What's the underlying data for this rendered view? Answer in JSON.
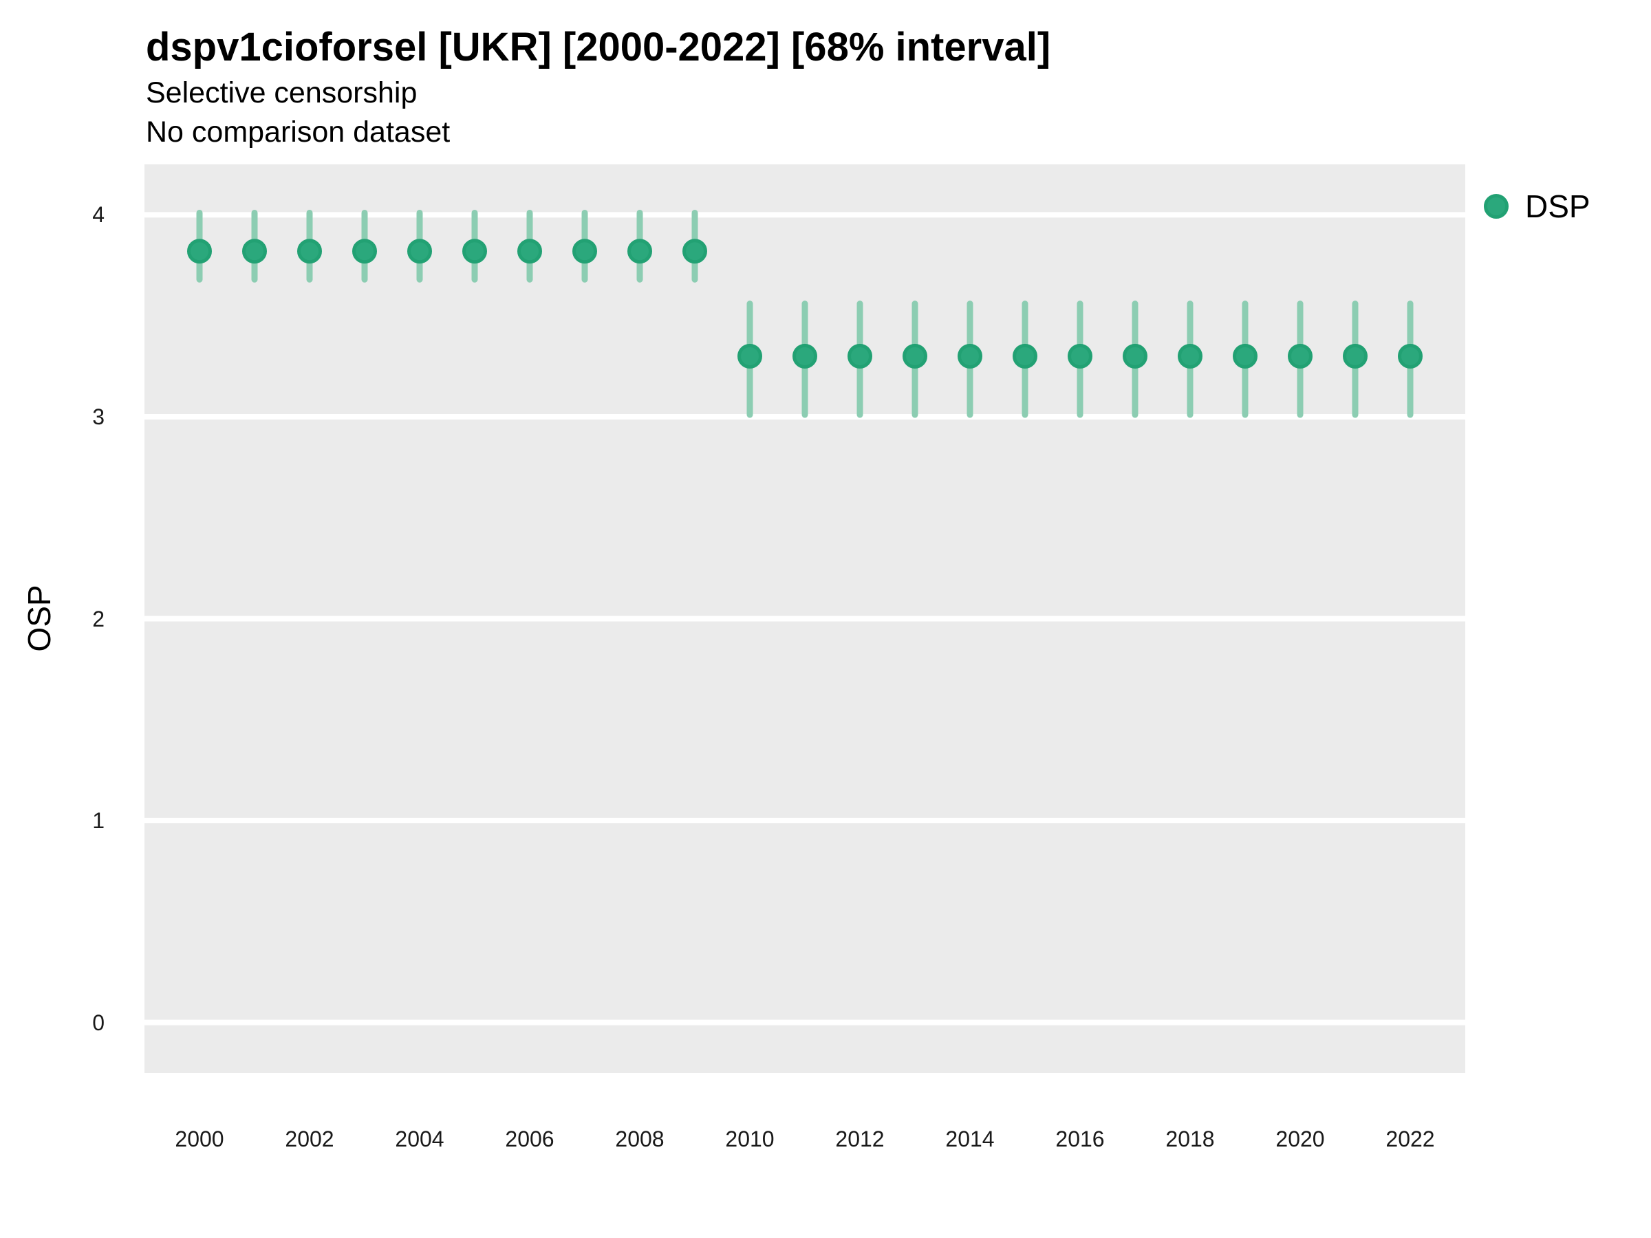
{
  "header": {
    "title": "dspv1cioforsel [UKR] [2000-2022] [68% interval]",
    "subtitle_line1": "Selective censorship",
    "subtitle_line2": "No comparison dataset"
  },
  "legend": {
    "label": "DSP",
    "swatch_icon": "filled-circle-icon"
  },
  "colors": {
    "point_fill": "#2BA87C",
    "point_stroke": "#22A173",
    "interval_line": "#8CCDB2",
    "panel_background": "#EBEBEB",
    "gridline": "#FFFFFF",
    "text": "#000000"
  },
  "chart_data": {
    "type": "scatter",
    "subtype": "point-with-68pct-interval",
    "title": "dspv1cioforsel [UKR] [2000-2022] [68% interval]",
    "subtitle": [
      "Selective censorship",
      "No comparison dataset"
    ],
    "xlabel": "",
    "ylabel": "OSP",
    "xlim": [
      1999,
      2023
    ],
    "ylim": [
      -0.25,
      4.25
    ],
    "x_ticks": [
      2000,
      2002,
      2004,
      2006,
      2008,
      2010,
      2012,
      2014,
      2016,
      2018,
      2020,
      2022
    ],
    "y_ticks": [
      0,
      1,
      2,
      3,
      4
    ],
    "grid": "horizontal-major-only",
    "legend_position": "right",
    "series": [
      {
        "name": "DSP",
        "points": [
          {
            "year": 2000,
            "mean": 3.82,
            "lo": 3.68,
            "hi": 4.01
          },
          {
            "year": 2001,
            "mean": 3.82,
            "lo": 3.68,
            "hi": 4.01
          },
          {
            "year": 2002,
            "mean": 3.82,
            "lo": 3.68,
            "hi": 4.01
          },
          {
            "year": 2003,
            "mean": 3.82,
            "lo": 3.68,
            "hi": 4.01
          },
          {
            "year": 2004,
            "mean": 3.82,
            "lo": 3.68,
            "hi": 4.01
          },
          {
            "year": 2005,
            "mean": 3.82,
            "lo": 3.68,
            "hi": 4.01
          },
          {
            "year": 2006,
            "mean": 3.82,
            "lo": 3.68,
            "hi": 4.01
          },
          {
            "year": 2007,
            "mean": 3.82,
            "lo": 3.68,
            "hi": 4.01
          },
          {
            "year": 2008,
            "mean": 3.82,
            "lo": 3.68,
            "hi": 4.01
          },
          {
            "year": 2009,
            "mean": 3.82,
            "lo": 3.68,
            "hi": 4.01
          },
          {
            "year": 2010,
            "mean": 3.3,
            "lo": 3.01,
            "hi": 3.56
          },
          {
            "year": 2011,
            "mean": 3.3,
            "lo": 3.01,
            "hi": 3.56
          },
          {
            "year": 2012,
            "mean": 3.3,
            "lo": 3.01,
            "hi": 3.56
          },
          {
            "year": 2013,
            "mean": 3.3,
            "lo": 3.01,
            "hi": 3.56
          },
          {
            "year": 2014,
            "mean": 3.3,
            "lo": 3.01,
            "hi": 3.56
          },
          {
            "year": 2015,
            "mean": 3.3,
            "lo": 3.01,
            "hi": 3.56
          },
          {
            "year": 2016,
            "mean": 3.3,
            "lo": 3.01,
            "hi": 3.56
          },
          {
            "year": 2017,
            "mean": 3.3,
            "lo": 3.01,
            "hi": 3.56
          },
          {
            "year": 2018,
            "mean": 3.3,
            "lo": 3.01,
            "hi": 3.56
          },
          {
            "year": 2019,
            "mean": 3.3,
            "lo": 3.01,
            "hi": 3.56
          },
          {
            "year": 2020,
            "mean": 3.3,
            "lo": 3.01,
            "hi": 3.56
          },
          {
            "year": 2021,
            "mean": 3.3,
            "lo": 3.01,
            "hi": 3.56
          },
          {
            "year": 2022,
            "mean": 3.3,
            "lo": 3.01,
            "hi": 3.56
          }
        ]
      }
    ]
  }
}
